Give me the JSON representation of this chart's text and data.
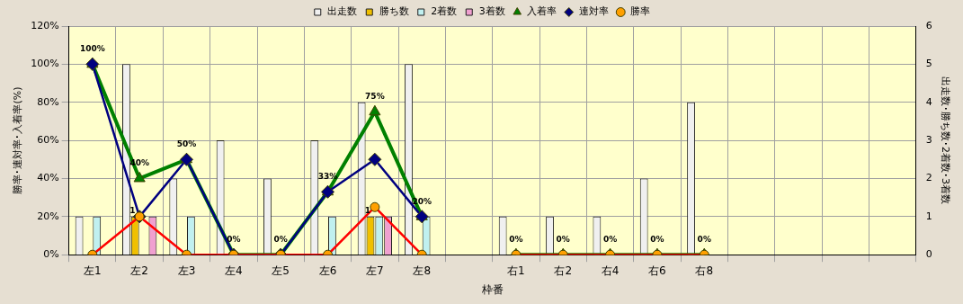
{
  "chart_data": {
    "type": "bar",
    "xlabel": "枠番",
    "ylabel": "勝率･連対率･入着率(%)",
    "y2label": "出走数･勝ち数･2着数･3着数",
    "categories": [
      "左1",
      "左2",
      "左3",
      "左4",
      "左5",
      "左6",
      "左7",
      "左8",
      null,
      "右1",
      "右2",
      "右4",
      "右6",
      "右8",
      null,
      null,
      null,
      null
    ],
    "series": [
      {
        "name": "出走数",
        "type": "bar",
        "axis": "y2",
        "color": "#f0f0f0",
        "values": [
          1,
          5,
          2,
          3,
          2,
          3,
          4,
          5,
          null,
          1,
          1,
          1,
          2,
          4,
          null,
          null,
          null,
          null
        ]
      },
      {
        "name": "勝ち数",
        "type": "bar",
        "axis": "y2",
        "color": "#f0c000",
        "values": [
          0,
          1,
          0,
          0,
          0,
          0,
          1,
          0,
          null,
          0,
          0,
          0,
          0,
          0,
          null,
          null,
          null,
          null
        ],
        "value_labels": [
          null,
          "1",
          null,
          null,
          null,
          null,
          "1",
          null,
          null,
          null,
          null,
          null,
          null,
          null,
          null,
          null,
          null,
          null
        ]
      },
      {
        "name": "2着数",
        "type": "bar",
        "axis": "y2",
        "color": "#c0f0f0",
        "values": [
          1,
          0,
          1,
          0,
          0,
          1,
          1,
          1,
          null,
          0,
          0,
          0,
          0,
          0,
          null,
          null,
          null,
          null
        ]
      },
      {
        "name": "3着数",
        "type": "bar",
        "axis": "y2",
        "color": "#f0a0d0",
        "values": [
          0,
          1,
          0,
          0,
          0,
          0,
          1,
          0,
          null,
          0,
          0,
          0,
          0,
          0,
          null,
          null,
          null,
          null
        ]
      },
      {
        "name": "入着率",
        "type": "line",
        "color": "#008000",
        "marker": "triangle",
        "values": [
          100,
          40,
          50,
          0,
          0,
          33,
          75,
          20,
          null,
          0,
          0,
          0,
          0,
          0,
          null,
          null,
          null,
          null
        ],
        "value_labels": [
          "100%",
          "40%",
          "50%",
          "0%",
          "0%",
          "33%",
          "75%",
          "20%",
          null,
          "0%",
          "0%",
          "0%",
          "0%",
          "0%",
          null,
          null,
          null,
          null
        ]
      },
      {
        "name": "連対率",
        "type": "line",
        "color": "#000080",
        "marker": "diamond",
        "values": [
          100,
          20,
          50,
          0,
          0,
          33,
          50,
          20,
          null,
          null,
          null,
          null,
          null,
          null,
          null,
          null,
          null,
          null
        ]
      },
      {
        "name": "勝率",
        "type": "line",
        "color": "#ff0000",
        "marker": "circle",
        "values": [
          0,
          20,
          0,
          0,
          0,
          0,
          25,
          0,
          null,
          0,
          0,
          0,
          0,
          0,
          null,
          null,
          null,
          null
        ]
      }
    ],
    "ylim": [
      0,
      120
    ],
    "yticks": [
      {
        "value": 0,
        "label": "0%"
      },
      {
        "value": 20,
        "label": "20%"
      },
      {
        "value": 40,
        "label": "40%"
      },
      {
        "value": 60,
        "label": "60%"
      },
      {
        "value": 80,
        "label": "80%"
      },
      {
        "value": 100,
        "label": "100%"
      },
      {
        "value": 120,
        "label": "120%"
      }
    ],
    "y2lim": [
      0,
      6
    ],
    "y2ticks": [
      0,
      1,
      2,
      3,
      4,
      5,
      6
    ],
    "grid": true,
    "legend": "top"
  }
}
